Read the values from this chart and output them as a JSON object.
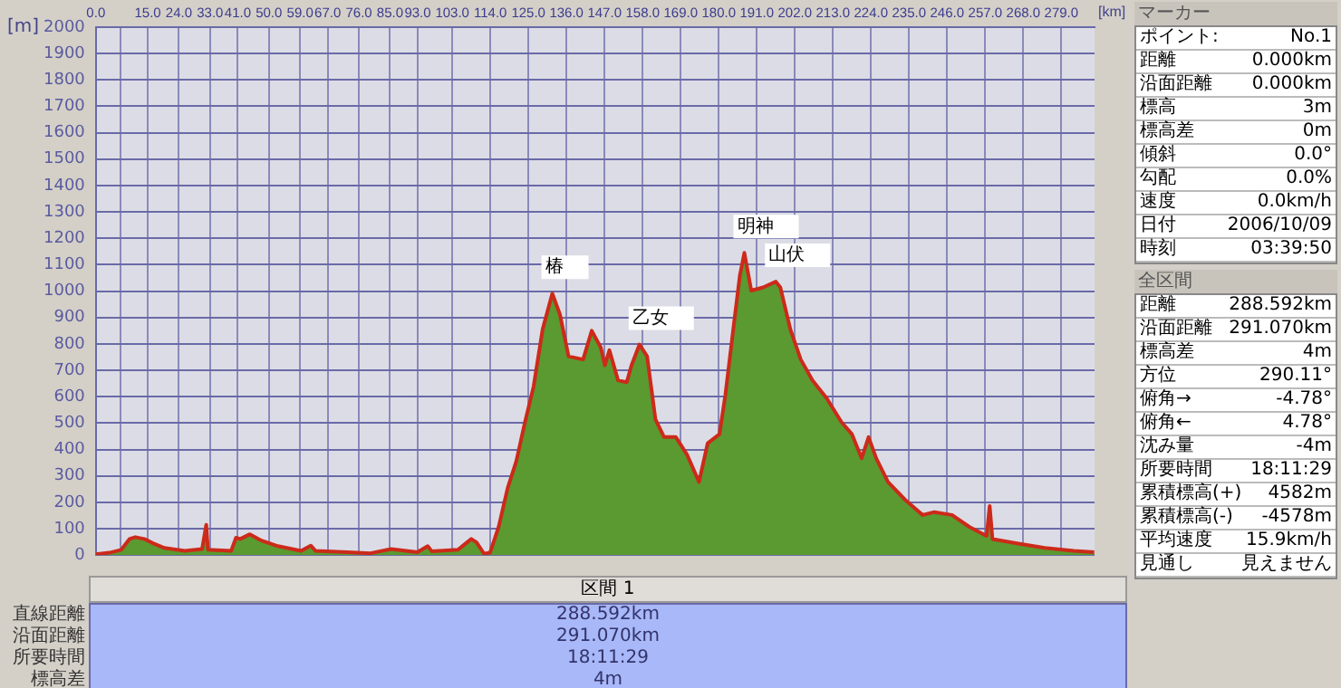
{
  "chart_data": {
    "type": "area",
    "xlabel": "[km]",
    "ylabel": "[m]",
    "x": [
      0,
      3.9,
      7.3,
      9.7,
      11.4,
      14,
      16.5,
      19.8,
      25.7,
      30.7,
      31.9,
      32.4,
      39.1,
      40.5,
      41.7,
      44.5,
      47.5,
      52.6,
      59.3,
      62.1,
      63.5,
      72.7,
      79.4,
      85.3,
      92.9,
      95.9,
      97.1,
      104.6,
      108.5,
      110,
      112.2,
      113.9,
      116.4,
      119,
      121.5,
      124,
      126.5,
      129.1,
      131.9,
      134.1,
      136.6,
      140.8,
      143.3,
      145.9,
      147.1,
      148.4,
      150.9,
      153.4,
      154.8,
      157.1,
      159.3,
      161.7,
      164.2,
      167.6,
      170.9,
      174.3,
      176.8,
      180.2,
      181.9,
      184.4,
      186.1,
      187.4,
      189.4,
      192.8,
      196.5,
      197.8,
      200.7,
      203.7,
      207.1,
      211.2,
      215.5,
      218.5,
      221.3,
      223.3,
      225.5,
      228.9,
      233.9,
      238.9,
      242.3,
      247.4,
      252.4,
      257.4,
      258.3,
      259.1,
      265.8,
      274.2,
      282.6,
      288.5
    ],
    "series": [
      {
        "color": "#5a9a30",
        "values": [
          3,
          9,
          20,
          61,
          68,
          61,
          45,
          27,
          16,
          23,
          115,
          20,
          16,
          66,
          61,
          79,
          57,
          34,
          16,
          36,
          16,
          11,
          7,
          23,
          11,
          34,
          14,
          20,
          61,
          48,
          5,
          9,
          107,
          254,
          356,
          503,
          639,
          855,
          991,
          912,
          753,
          741,
          850,
          787,
          719,
          776,
          662,
          655,
          719,
          798,
          753,
          515,
          447,
          447,
          379,
          277,
          424,
          458,
          605,
          878,
          1059,
          1145,
          1002,
          1014,
          1036,
          1014,
          855,
          741,
          662,
          594,
          503,
          458,
          367,
          447,
          367,
          277,
          209,
          152,
          163,
          152,
          107,
          73,
          186,
          61,
          45,
          27,
          16,
          11
        ]
      }
    ],
    "xlim": [
      0,
      288.6
    ],
    "xticks": [
      {
        "value": 0,
        "label": "0.0"
      },
      {
        "value": 7,
        "label": null
      },
      {
        "value": 15,
        "label": "15.0"
      },
      {
        "value": 24,
        "label": "24.0"
      },
      {
        "value": 33,
        "label": "33.0"
      },
      {
        "value": 41,
        "label": "41.0"
      },
      {
        "value": 50,
        "label": "50.0"
      },
      {
        "value": 59,
        "label": "59.0"
      },
      {
        "value": 67,
        "label": "67.0"
      },
      {
        "value": 76,
        "label": "76.0"
      },
      {
        "value": 85,
        "label": "85.0"
      },
      {
        "value": 93,
        "label": "93.0"
      },
      {
        "value": 103,
        "label": "103.0"
      },
      {
        "value": 114,
        "label": "114.0"
      },
      {
        "value": 125,
        "label": "125.0"
      },
      {
        "value": 136,
        "label": "136.0"
      },
      {
        "value": 147,
        "label": "147.0"
      },
      {
        "value": 158,
        "label": "158.0"
      },
      {
        "value": 169,
        "label": "169.0"
      },
      {
        "value": 180,
        "label": "180.0"
      },
      {
        "value": 191,
        "label": "191.0"
      },
      {
        "value": 202,
        "label": "202.0"
      },
      {
        "value": 213,
        "label": "213.0"
      },
      {
        "value": 224,
        "label": "224.0"
      },
      {
        "value": 235,
        "label": "235.0"
      },
      {
        "value": 246,
        "label": "246.0"
      },
      {
        "value": 257,
        "label": "257.0"
      },
      {
        "value": 268,
        "label": "268.0"
      },
      {
        "value": 279,
        "label": "279.0"
      }
    ],
    "ylim": [
      0,
      2000
    ],
    "yticks": [
      0,
      100,
      200,
      300,
      400,
      500,
      600,
      700,
      800,
      900,
      1000,
      1100,
      1200,
      1300,
      1400,
      1500,
      1600,
      1700,
      1800,
      1900,
      2000
    ],
    "grid": true,
    "legend": false,
    "marker": "none",
    "line_style": "solid",
    "annotations": [
      {
        "text": "椿",
        "x": 131.9,
        "y": 991
      },
      {
        "text": "乙女",
        "x": 157.1,
        "y": 798
      },
      {
        "text": "明神",
        "x": 187.4,
        "y": 1145
      },
      {
        "text": "山伏",
        "x": 196.5,
        "y": 1036
      },
      "マーカー",
      "ポイント:\tNo.1",
      "距離\t0.000km",
      "沿面距離\t0.000km",
      "標高\t3m",
      "標高差\t0m",
      "傾斜\t0.0°",
      "勾配\t0.0%",
      "速度\t0.0km/h",
      "日付\t2006/10/09",
      "時刻\t03:39:50",
      "全区間",
      "距離\t288.592km",
      "沿面距離\t291.070km",
      "標高差\t4m",
      "方位\t290.11°",
      "俯角→\t-4.78°",
      "俯角←\t4.78°",
      "沈み量\t-4m",
      "所要時間\t18:11:29",
      "累積標高(+)\t4582m",
      "累積標高(-)\t-4578m",
      "平均速度\t15.9km/h",
      "見通し\t見えません",
      "区間 1",
      "直線距離\t288.592km",
      "沿面距離\t291.070km",
      "所要時間\t18:11:29",
      "標高差\t4m"
    ]
  }
}
